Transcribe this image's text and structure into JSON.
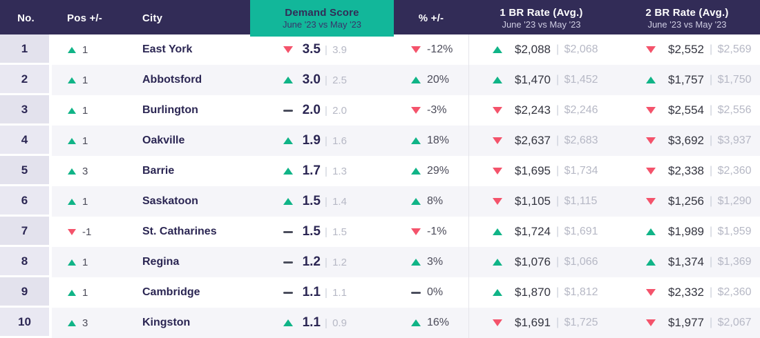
{
  "chart_data": {
    "type": "table",
    "columns": {
      "no": {
        "label": "No."
      },
      "pos": {
        "label": "Pos +/-"
      },
      "city": {
        "label": "City"
      },
      "demand": {
        "label": "Demand Score",
        "sublabel": "June '23 vs May '23"
      },
      "pct": {
        "label": "% +/-"
      },
      "br1": {
        "label": "1 BR Rate (Avg.)",
        "sublabel": "June '23 vs May '23"
      },
      "br2": {
        "label": "2 BR Rate (Avg.)",
        "sublabel": "June '23 vs May '23"
      }
    },
    "rows": [
      {
        "no": "1",
        "pos": {
          "dir": "up",
          "value": "1"
        },
        "city": "East York",
        "demand": {
          "dir": "down",
          "current": "3.5",
          "previous": "3.9"
        },
        "pct": {
          "dir": "down",
          "value": "-12%"
        },
        "br1": {
          "dir": "up",
          "current": "$2,088",
          "previous": "$2,068"
        },
        "br2": {
          "dir": "down",
          "current": "$2,552",
          "previous": "$2,569"
        }
      },
      {
        "no": "2",
        "pos": {
          "dir": "up",
          "value": "1"
        },
        "city": "Abbotsford",
        "demand": {
          "dir": "up",
          "current": "3.0",
          "previous": "2.5"
        },
        "pct": {
          "dir": "up",
          "value": "20%"
        },
        "br1": {
          "dir": "up",
          "current": "$1,470",
          "previous": "$1,452"
        },
        "br2": {
          "dir": "up",
          "current": "$1,757",
          "previous": "$1,750"
        }
      },
      {
        "no": "3",
        "pos": {
          "dir": "up",
          "value": "1"
        },
        "city": "Burlington",
        "demand": {
          "dir": "flat",
          "current": "2.0",
          "previous": "2.0"
        },
        "pct": {
          "dir": "down",
          "value": "-3%"
        },
        "br1": {
          "dir": "down",
          "current": "$2,243",
          "previous": "$2,246"
        },
        "br2": {
          "dir": "down",
          "current": "$2,554",
          "previous": "$2,556"
        }
      },
      {
        "no": "4",
        "pos": {
          "dir": "up",
          "value": "1"
        },
        "city": "Oakville",
        "demand": {
          "dir": "up",
          "current": "1.9",
          "previous": "1.6"
        },
        "pct": {
          "dir": "up",
          "value": "18%"
        },
        "br1": {
          "dir": "down",
          "current": "$2,637",
          "previous": "$2,683"
        },
        "br2": {
          "dir": "down",
          "current": "$3,692",
          "previous": "$3,937"
        }
      },
      {
        "no": "5",
        "pos": {
          "dir": "up",
          "value": "3"
        },
        "city": "Barrie",
        "demand": {
          "dir": "up",
          "current": "1.7",
          "previous": "1.3"
        },
        "pct": {
          "dir": "up",
          "value": "29%"
        },
        "br1": {
          "dir": "down",
          "current": "$1,695",
          "previous": "$1,734"
        },
        "br2": {
          "dir": "down",
          "current": "$2,338",
          "previous": "$2,360"
        }
      },
      {
        "no": "6",
        "pos": {
          "dir": "up",
          "value": "1"
        },
        "city": "Saskatoon",
        "demand": {
          "dir": "up",
          "current": "1.5",
          "previous": "1.4"
        },
        "pct": {
          "dir": "up",
          "value": "8%"
        },
        "br1": {
          "dir": "down",
          "current": "$1,105",
          "previous": "$1,115"
        },
        "br2": {
          "dir": "down",
          "current": "$1,256",
          "previous": "$1,290"
        }
      },
      {
        "no": "7",
        "pos": {
          "dir": "down",
          "value": "-1"
        },
        "city": "St. Catharines",
        "demand": {
          "dir": "flat",
          "current": "1.5",
          "previous": "1.5"
        },
        "pct": {
          "dir": "down",
          "value": "-1%"
        },
        "br1": {
          "dir": "up",
          "current": "$1,724",
          "previous": "$1,691"
        },
        "br2": {
          "dir": "up",
          "current": "$1,989",
          "previous": "$1,959"
        }
      },
      {
        "no": "8",
        "pos": {
          "dir": "up",
          "value": "1"
        },
        "city": "Regina",
        "demand": {
          "dir": "flat",
          "current": "1.2",
          "previous": "1.2"
        },
        "pct": {
          "dir": "up",
          "value": "3%"
        },
        "br1": {
          "dir": "up",
          "current": "$1,076",
          "previous": "$1,066"
        },
        "br2": {
          "dir": "up",
          "current": "$1,374",
          "previous": "$1,369"
        }
      },
      {
        "no": "9",
        "pos": {
          "dir": "up",
          "value": "1"
        },
        "city": "Cambridge",
        "demand": {
          "dir": "flat",
          "current": "1.1",
          "previous": "1.1"
        },
        "pct": {
          "dir": "flat",
          "value": "0%"
        },
        "br1": {
          "dir": "up",
          "current": "$1,870",
          "previous": "$1,812"
        },
        "br2": {
          "dir": "down",
          "current": "$2,332",
          "previous": "$2,360"
        }
      },
      {
        "no": "10",
        "pos": {
          "dir": "up",
          "value": "3"
        },
        "city": "Kingston",
        "demand": {
          "dir": "up",
          "current": "1.1",
          "previous": "0.9"
        },
        "pct": {
          "dir": "up",
          "value": "16%"
        },
        "br1": {
          "dir": "down",
          "current": "$1,691",
          "previous": "$1,725"
        },
        "br2": {
          "dir": "down",
          "current": "$1,977",
          "previous": "$2,067"
        }
      }
    ]
  },
  "colors": {
    "header_bg": "#322c57",
    "accent": "#12b79a",
    "green": "#10b487",
    "red": "#f4536b",
    "row_alt": "#f5f5f9",
    "no_odd": "#e3e2ed",
    "no_even": "#e9e8f2",
    "navy_text": "#2b2653",
    "dark_text": "#33343f",
    "muted_text": "#4b4b59",
    "light_text": "#b6b8c5",
    "pipe": "#ccd0da",
    "divider": "#e5e5eb",
    "header_sub": "#cfcde2",
    "dash": "#4a4d5c"
  }
}
